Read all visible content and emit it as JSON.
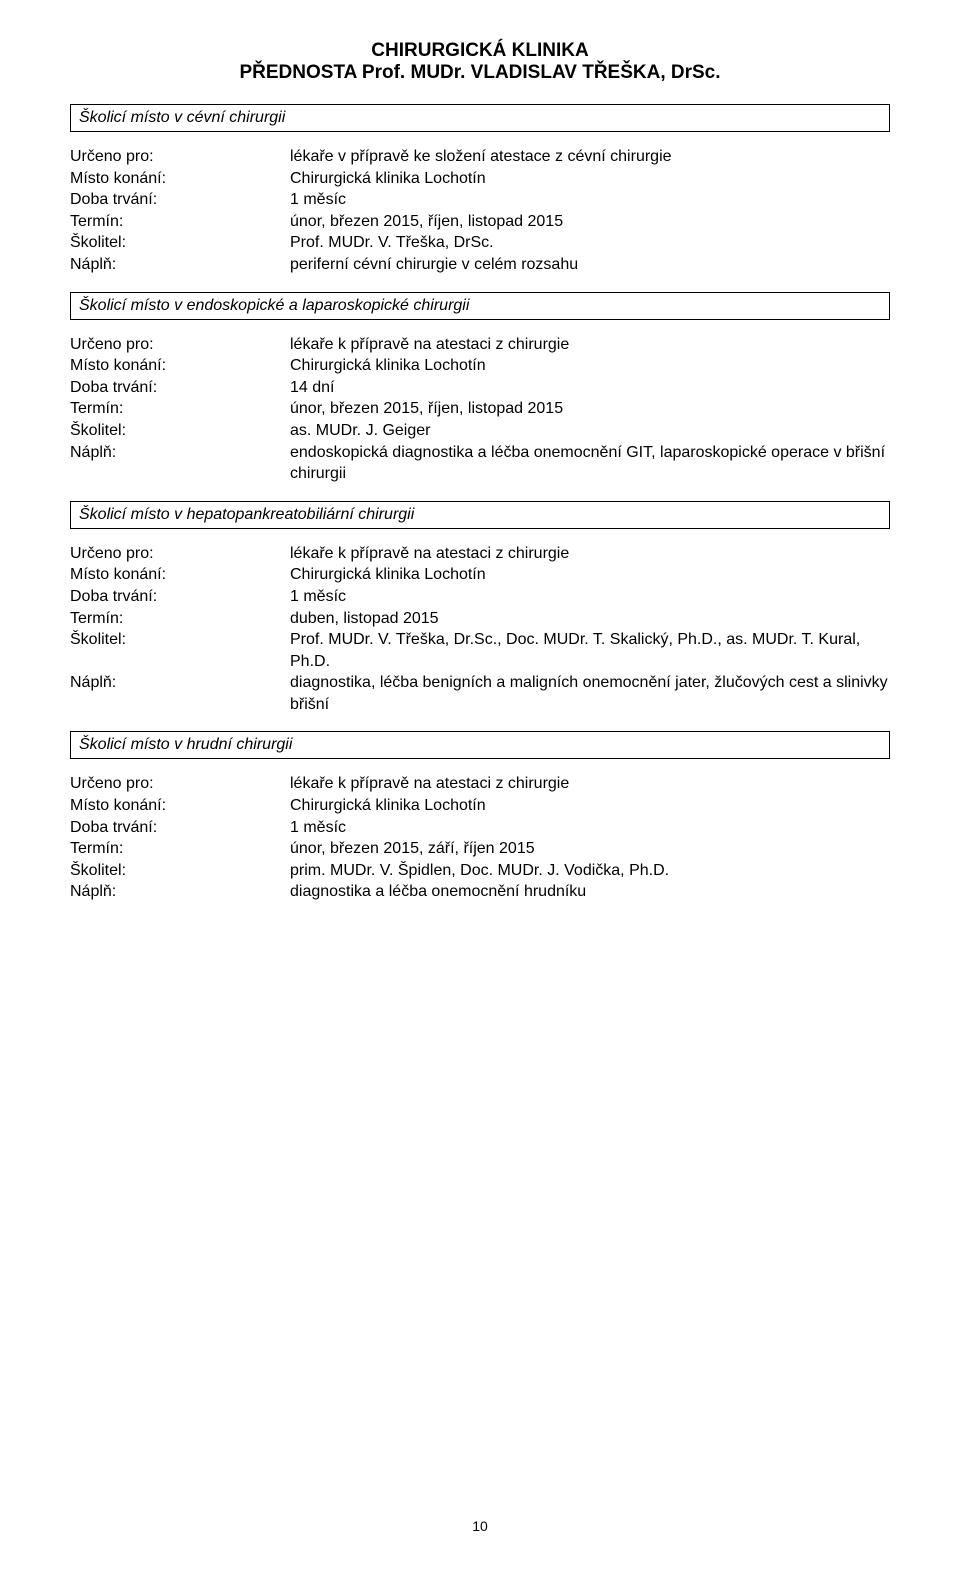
{
  "header": {
    "line1": "CHIRURGICKÁ KLINIKA",
    "line2": "PŘEDNOSTA Prof. MUDr. VLADISLAV TŘEŠKA, DrSc."
  },
  "labels": {
    "urceno_pro": "Určeno pro:",
    "misto_konani": "Místo konání:",
    "doba_trvani": "Doba trvání:",
    "termin": "Termín:",
    "skolitel": "Školitel:",
    "napln": "Náplň:"
  },
  "sections": [
    {
      "title": "Školicí místo v cévní chirurgii",
      "fields": {
        "urceno_pro": "lékaře v přípravě ke složení atestace z cévní chirurgie",
        "misto_konani": "Chirurgická klinika Lochotín",
        "doba_trvani": "1 měsíc",
        "termin": "únor, březen 2015, říjen, listopad 2015",
        "skolitel": "Prof. MUDr. V. Třeška, DrSc.",
        "napln": "periferní cévní chirurgie v celém rozsahu"
      }
    },
    {
      "title": "Školicí místo v endoskopické a laparoskopické chirurgii",
      "fields": {
        "urceno_pro": "lékaře k přípravě na atestaci z chirurgie",
        "misto_konani": "Chirurgická klinika Lochotín",
        "doba_trvani": "14 dní",
        "termin": "únor, březen 2015, říjen, listopad 2015",
        "skolitel": "as. MUDr. J. Geiger",
        "napln": "endoskopická diagnostika a léčba onemocnění GIT, laparoskopické operace v břišní chirurgii"
      }
    },
    {
      "title": "Školicí místo v hepatopankreatobiliární chirurgii",
      "fields": {
        "urceno_pro": "lékaře k přípravě na atestaci z chirurgie",
        "misto_konani": "Chirurgická klinika Lochotín",
        "doba_trvani": "1 měsíc",
        "termin": "duben, listopad 2015",
        "skolitel": "Prof. MUDr. V. Třeška, Dr.Sc., Doc. MUDr. T. Skalický, Ph.D., as. MUDr. T. Kural, Ph.D.",
        "napln": "diagnostika, léčba benigních a maligních onemocnění jater, žlučových cest a slinivky břišní"
      }
    },
    {
      "title": "Školicí místo v hrudní chirurgii",
      "fields": {
        "urceno_pro": "lékaře k přípravě na atestaci z chirurgie",
        "misto_konani": "Chirurgická klinika Lochotín",
        "doba_trvani": "1 měsíc",
        "termin": "únor, březen 2015, září, říjen 2015",
        "skolitel": "prim. MUDr. V. Špidlen, Doc. MUDr. J. Vodička, Ph.D.",
        "napln": "diagnostika a léčba onemocnění hrudníku"
      }
    }
  ],
  "page_number": "10"
}
